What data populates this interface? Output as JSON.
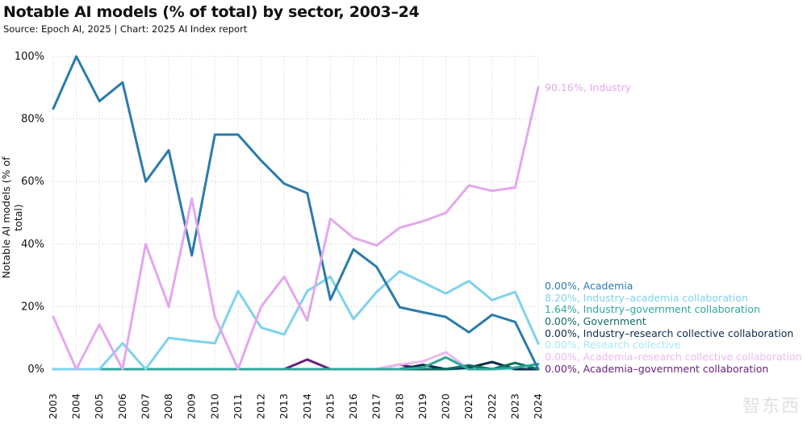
{
  "title": "Notable AI models (% of total) by sector, 2003–24",
  "subtitle": "Source: Epoch AI, 2025 | Chart: 2025 AI Index report",
  "watermark": "智东西",
  "chart_data": {
    "type": "line",
    "title": "Notable AI models (% of total) by sector, 2003–24",
    "ylabel": "Notable AI models (% of total)",
    "xlabel": "",
    "ylim": [
      0,
      100
    ],
    "y_ticks": [
      "0%",
      "20%",
      "40%",
      "60%",
      "80%",
      "100%"
    ],
    "y_tick_values": [
      0,
      20,
      40,
      60,
      80,
      100
    ],
    "x": [
      "2003",
      "2004",
      "2005",
      "2006",
      "2007",
      "2008",
      "2009",
      "2010",
      "2011",
      "2012",
      "2013",
      "2014",
      "2015",
      "2016",
      "2017",
      "2018",
      "2019",
      "2020",
      "2021",
      "2022",
      "2023",
      "2024"
    ],
    "grid": true,
    "legend": "end labels on the right",
    "series": [
      {
        "name": "Industry",
        "end_label": "90.16%, Industry",
        "color": "#e3a8ec",
        "values": [
          16.7,
          0,
          14.3,
          0,
          40,
          20,
          54.5,
          16.7,
          0,
          20,
          29.6,
          15.6,
          48.1,
          42,
          39.6,
          45.2,
          47.3,
          50,
          58.8,
          57,
          58.1,
          90.16
        ]
      },
      {
        "name": "Academia",
        "end_label": "0.00%, Academia",
        "color": "#2b7bab",
        "values": [
          83.3,
          100,
          85.7,
          91.7,
          60,
          70,
          36.4,
          75,
          75,
          66.7,
          59.3,
          56.3,
          22.2,
          38.3,
          32.7,
          19.8,
          18.2,
          16.7,
          11.8,
          17.4,
          15.1,
          0
        ]
      },
      {
        "name": "Industry–academia collaboration",
        "end_label": "8.20%, Industry–academia collaboration",
        "color": "#7fd2ec",
        "values": [
          0,
          0,
          0,
          8.3,
          0,
          10,
          9.1,
          8.3,
          25,
          13.3,
          11.1,
          25,
          29.6,
          16,
          24.7,
          31.3,
          27.8,
          24.2,
          28.2,
          22.1,
          24.7,
          8.2
        ]
      },
      {
        "name": "Industry–government collaboration",
        "end_label": "1.64%, Industry–government collaboration",
        "color": "#2ea79a",
        "values": [
          0,
          0,
          0,
          0,
          0,
          0,
          0,
          0,
          0,
          0,
          0,
          0,
          0,
          0,
          0,
          0,
          0.5,
          3.8,
          0,
          0,
          0.5,
          1.64
        ]
      },
      {
        "name": "Government",
        "end_label": "0.00%, Government",
        "color": "#0f6e5e",
        "values": [
          0,
          0,
          0,
          0,
          0,
          0,
          0,
          0,
          0,
          0,
          0,
          0,
          0,
          0,
          0,
          0,
          0,
          0,
          1.2,
          0,
          2.0,
          0
        ]
      },
      {
        "name": "Industry–research collective collaboration",
        "end_label": "0.00%, Industry–research collective collaboration",
        "color": "#0b2c4a",
        "values": [
          0,
          0,
          0,
          0,
          0,
          0,
          0,
          0,
          0,
          0,
          0,
          0,
          0,
          0,
          0,
          0,
          1.4,
          0,
          0.5,
          2.3,
          0,
          0
        ]
      },
      {
        "name": "Research collective",
        "end_label": "0.00%, Research collective",
        "color": "#a6e9f7",
        "values": [
          0,
          0,
          0,
          0,
          0,
          0,
          0,
          0,
          0,
          0,
          0,
          0,
          0,
          0,
          0,
          0,
          0,
          0,
          0,
          0,
          0,
          0
        ]
      },
      {
        "name": "Academia–research collective collaboration",
        "end_label": "0.00%, Academia–research collective collaboration",
        "color": "#ecb9f0",
        "values": [
          0,
          0,
          0,
          0,
          0,
          0,
          0,
          0,
          0,
          0,
          0,
          0,
          0,
          0,
          0,
          1.5,
          2.5,
          5.4,
          0,
          0,
          0,
          0
        ]
      },
      {
        "name": "Academia–government collaboration",
        "end_label": "0.00%, Academia–government collaboration",
        "color": "#6a2080",
        "values": [
          0,
          0,
          0,
          0,
          0,
          0,
          0,
          0,
          0,
          0,
          0,
          3.1,
          0,
          0,
          0,
          1.5,
          0,
          0,
          1.2,
          0,
          0,
          0
        ]
      }
    ]
  }
}
